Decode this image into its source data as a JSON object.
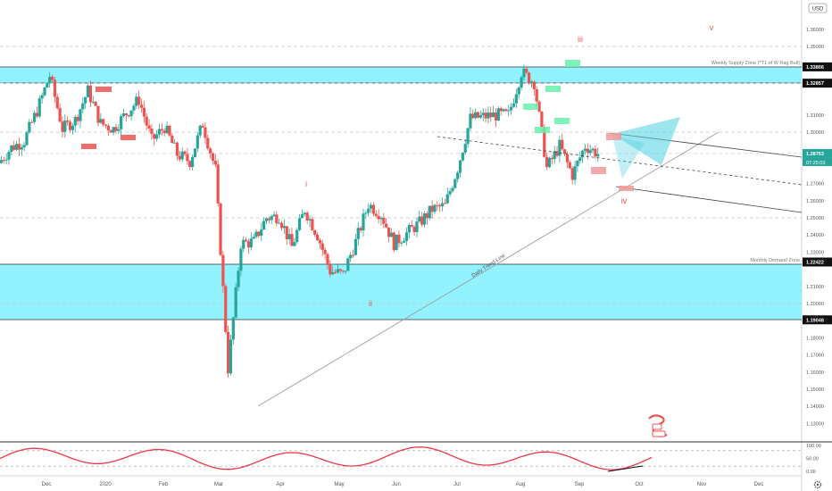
{
  "currency_label": "USD",
  "y_axis_ticks": [
    "1.36000",
    "1.35000",
    "1.33806",
    "1.32857",
    "1.31000",
    "1.30000",
    "1.28753",
    "1.27000",
    "1.26000",
    "1.25000",
    "1.24000",
    "1.23000",
    "1.22422",
    "1.21000",
    "1.20000",
    "1.19048",
    "1.18000",
    "1.17000",
    "1.16000",
    "1.15000",
    "1.14000",
    "1.13000"
  ],
  "osc_ticks": [
    "100.00",
    "50.00",
    "0.00"
  ],
  "x_axis_ticks": [
    "Dec",
    "2020",
    "Feb",
    "Mar",
    "Apr",
    "May",
    "Jun",
    "Jul",
    "Aug",
    "Sep",
    "Oct",
    "Nov",
    "Dec"
  ],
  "price_labels": {
    "supply_top": "1.33806",
    "supply_bottom": "1.32857",
    "current": "1.28753",
    "countdown": "07:25:03",
    "demand_top": "1.22422",
    "demand_bottom": "1.19048"
  },
  "zone_labels": {
    "supply": "Weekly Supply Zone (*T1 of W Rag Bull)",
    "demand": "Monthly Demand Zone"
  },
  "trend_label": "Daily Trend Line",
  "wave_labels": {
    "i": "i",
    "ii": "ii",
    "iii": "iii",
    "iv": "iv",
    "v": "v"
  },
  "colors": {
    "up": "#26a69a",
    "down": "#ef5350",
    "zone": "#7ff0ff",
    "projection": "#4dd0e1",
    "highlight_green": "#69f0ae",
    "highlight_red": "#ef5350",
    "oscillator": "#f23645"
  },
  "chart_data": {
    "type": "candlestick",
    "title": "",
    "x_range": [
      "2019-11-11",
      "2020-12-31"
    ],
    "ylim": [
      1.128,
      1.372
    ],
    "y_scale": "linear",
    "grid": false,
    "closes": [
      [
        "2019-11-11",
        1.282
      ],
      [
        "2019-11-18",
        1.291
      ],
      [
        "2019-11-25",
        1.295
      ],
      [
        "2019-12-02",
        1.3125
      ],
      [
        "2019-12-09",
        1.333
      ],
      [
        "2019-12-16",
        1.302
      ],
      [
        "2019-12-23",
        1.307
      ],
      [
        "2019-12-30",
        1.324
      ],
      [
        "2020-01-06",
        1.305
      ],
      [
        "2020-01-13",
        1.302
      ],
      [
        "2020-01-20",
        1.311
      ],
      [
        "2020-01-27",
        1.319
      ],
      [
        "2020-02-03",
        1.295
      ],
      [
        "2020-02-10",
        1.303
      ],
      [
        "2020-02-17",
        1.287
      ],
      [
        "2020-02-24",
        1.283
      ],
      [
        "2020-03-02",
        1.305
      ],
      [
        "2020-03-09",
        1.278
      ],
      [
        "2020-03-16",
        1.162
      ],
      [
        "2020-03-23",
        1.235
      ],
      [
        "2020-03-30",
        1.236
      ],
      [
        "2020-04-06",
        1.25
      ],
      [
        "2020-04-13",
        1.251
      ],
      [
        "2020-04-20",
        1.233
      ],
      [
        "2020-04-27",
        1.255
      ],
      [
        "2020-05-04",
        1.24
      ],
      [
        "2020-05-11",
        1.219
      ],
      [
        "2020-05-18",
        1.217
      ],
      [
        "2020-05-25",
        1.236
      ],
      [
        "2020-06-01",
        1.258
      ],
      [
        "2020-06-08",
        1.252
      ],
      [
        "2020-06-15",
        1.235
      ],
      [
        "2020-06-22",
        1.241
      ],
      [
        "2020-06-29",
        1.247
      ],
      [
        "2020-07-06",
        1.255
      ],
      [
        "2020-07-13",
        1.257
      ],
      [
        "2020-07-20",
        1.279
      ],
      [
        "2020-07-27",
        1.308
      ],
      [
        "2020-08-03",
        1.309
      ],
      [
        "2020-08-10",
        1.31
      ],
      [
        "2020-08-17",
        1.31
      ],
      [
        "2020-08-24",
        1.335
      ],
      [
        "2020-08-31",
        1.329
      ],
      [
        "2020-09-07",
        1.279
      ],
      [
        "2020-09-14",
        1.292
      ],
      [
        "2020-09-21",
        1.275
      ],
      [
        "2020-09-28",
        1.292
      ],
      [
        "2020-10-05",
        1.2875
      ]
    ],
    "key_levels": [
      1.33806,
      1.32857,
      1.22422,
      1.19048
    ],
    "oscillator": {
      "range": [
        0,
        100
      ],
      "levels": [
        80,
        20
      ]
    }
  }
}
